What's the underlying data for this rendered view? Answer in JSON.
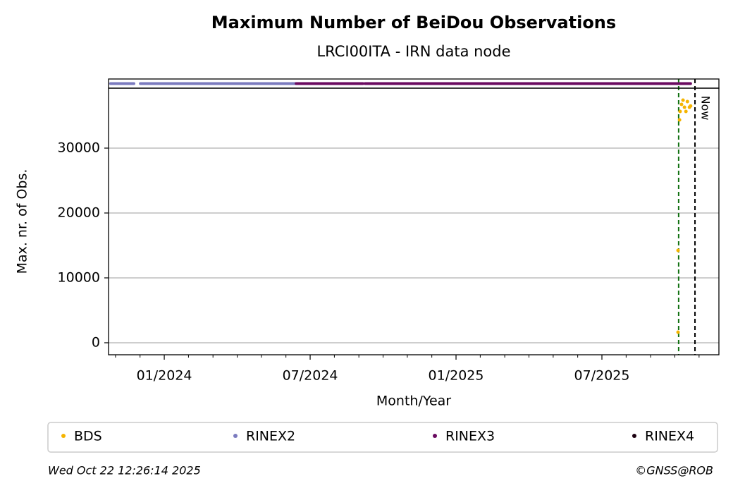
{
  "chart_data": {
    "type": "scatter",
    "title": "Maximum Number of BeiDou Observations",
    "subtitle": "LRCI00ITA - IRN data node",
    "x_label": "Month/Year",
    "y_label": "Max. nr. of Obs.",
    "xlim": [
      2023.809,
      2025.901
    ],
    "xticks": [
      {
        "value": 2024.0,
        "label": "01/2024"
      },
      {
        "value": 2024.5,
        "label": "07/2024"
      },
      {
        "value": 2025.0,
        "label": "01/2025"
      },
      {
        "value": 2025.5,
        "label": "07/2025"
      }
    ],
    "minor_xticks": [
      2023.833,
      2023.917,
      2024.083,
      2024.167,
      2024.25,
      2024.333,
      2024.417,
      2024.583,
      2024.667,
      2024.75,
      2024.833,
      2024.917,
      2025.083,
      2025.167,
      2025.25,
      2025.333,
      2025.417,
      2025.583,
      2025.667,
      2025.75,
      2025.833
    ],
    "ylim": [
      -1850,
      39240
    ],
    "yticks": [
      0,
      10000,
      20000,
      30000
    ],
    "grid": true,
    "series": [
      {
        "name": "BDS",
        "color": "#f5b400",
        "x": [
          2025.761,
          2025.761,
          2025.766,
          2025.768,
          2025.773,
          2025.778,
          2025.783,
          2025.788,
          2025.793,
          2025.8,
          2025.804
        ],
        "values": [
          1630,
          14240,
          34350,
          35650,
          36740,
          37390,
          36300,
          35650,
          37170,
          36300,
          36500
        ]
      },
      {
        "name": "RINEX2",
        "color": "#7b7bbf",
        "x_ranges": [
          [
            2023.816,
            2023.896
          ],
          [
            2023.918,
            2024.452
          ]
        ]
      },
      {
        "name": "RINEX3",
        "color": "#6a0a60",
        "x_ranges": [
          [
            2024.452,
            2024.681
          ],
          [
            2024.688,
            2025.804
          ]
        ]
      },
      {
        "name": "RINEX4",
        "color": "#1c0010",
        "x_ranges": []
      }
    ],
    "vlines": [
      {
        "x": 2025.763,
        "color": "#107010"
      },
      {
        "x": 2025.819,
        "color": "#000000",
        "label": "Now"
      }
    ],
    "timestamp": "Wed Oct 22 12:26:14 2025",
    "credit": "©GNSS@ROB"
  }
}
